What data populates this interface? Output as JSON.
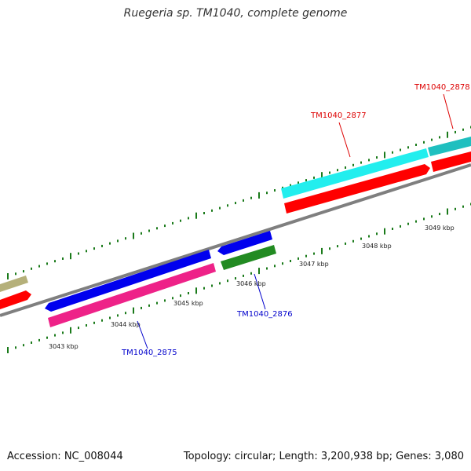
{
  "title": "Ruegeria sp. TM1040, complete genome",
  "footer": {
    "accession": "Accession: NC_008044",
    "summary": "Topology: circular; Length: 3,200,938 bp; Genes: 3,080"
  },
  "scale_labels": [
    "3043 kbp",
    "3044 kbp",
    "3045 kbp",
    "3046 kbp",
    "3047 kbp",
    "3048 kbp",
    "3049 kbp"
  ],
  "gene_labels": [
    {
      "name": "TM1040_2875",
      "color": "#0000cc"
    },
    {
      "name": "TM1040_2876",
      "color": "#0000cc"
    },
    {
      "name": "TM1040_2877",
      "color": "#dd0000"
    },
    {
      "name": "TM1040_2878",
      "color": "#dd0000"
    }
  ],
  "colors": {
    "backbone": "#888888",
    "ticks": "#1a7a1a",
    "cyan": "#22eeee",
    "teal": "#1fbfbf",
    "red": "#ff0000",
    "blue": "#0000ee",
    "magenta": "#ee2288",
    "green": "#228b22",
    "khaki": "#b5b07a"
  }
}
